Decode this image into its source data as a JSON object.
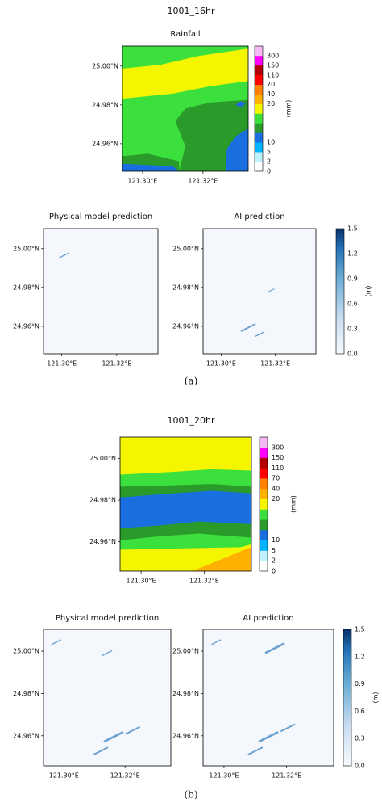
{
  "panels": [
    {
      "title": "1001_16hr",
      "rainfall": {
        "title": "Rainfall",
        "yticks": [
          "25.00°N",
          "24.98°N",
          "24.96°N"
        ],
        "xticks": [
          "121.30°E",
          "121.32°E"
        ],
        "colorbar": {
          "label": "(mm)",
          "ticks": [
            "0",
            "2",
            "5",
            "10",
            "20",
            "40",
            "70",
            "110",
            "150",
            "300"
          ]
        }
      },
      "physical": {
        "title": "Physical model prediction",
        "yticks": [
          "25.00°N",
          "24.98°N",
          "24.96°N"
        ],
        "xticks": [
          "121.30°E",
          "121.32°E"
        ]
      },
      "ai": {
        "title": "AI prediction",
        "yticks": [
          "25.00°N",
          "24.98°N",
          "24.96°N"
        ],
        "xticks": [
          "121.30°E",
          "121.32°E"
        ]
      },
      "depth_colorbar": {
        "label": "(m)",
        "ticks": [
          "0.0",
          "0.3",
          "0.6",
          "0.9",
          "1.2",
          "1.5"
        ]
      },
      "caption": "(a)"
    },
    {
      "title": "1001_20hr",
      "rainfall": {
        "title": "Rainfall",
        "yticks": [
          "25.00°N",
          "24.98°N",
          "24.96°N"
        ],
        "xticks": [
          "121.30°E",
          "121.32°E"
        ],
        "colorbar": {
          "label": "(mm)",
          "ticks": [
            "0",
            "2",
            "5",
            "10",
            "20",
            "40",
            "70",
            "110",
            "150",
            "300"
          ]
        }
      },
      "physical": {
        "title": "Physical model prediction",
        "yticks": [
          "25.00°N",
          "24.98°N",
          "24.96°N"
        ],
        "xticks": [
          "121.30°E",
          "121.32°E"
        ]
      },
      "ai": {
        "title": "AI prediction",
        "yticks": [
          "25.00°N",
          "24.98°N",
          "24.96°N"
        ],
        "xticks": [
          "121.30°E",
          "121.32°E"
        ]
      },
      "depth_colorbar": {
        "label": "(m)",
        "ticks": [
          "0.0",
          "0.3",
          "0.6",
          "0.9",
          "1.2",
          "1.5"
        ]
      },
      "caption": "(b)"
    }
  ]
}
